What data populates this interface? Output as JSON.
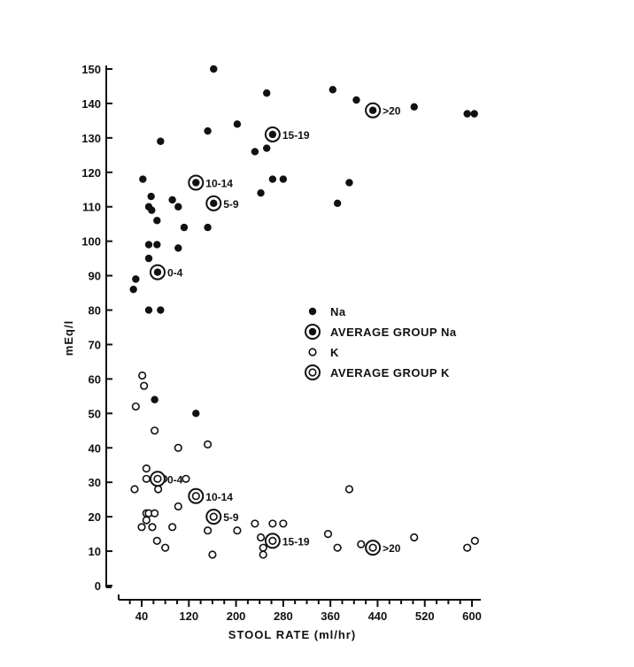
{
  "chart_data": {
    "type": "scatter",
    "xlabel": "STOOL RATE (ml/hr)",
    "ylabel": "mEq/l",
    "xlim": [
      20,
      600
    ],
    "ylim": [
      0,
      150
    ],
    "xticks": [
      40,
      120,
      200,
      280,
      360,
      440,
      520,
      600
    ],
    "yticks": [
      0,
      10,
      20,
      30,
      40,
      50,
      60,
      70,
      80,
      90,
      100,
      110,
      120,
      130,
      140,
      150
    ],
    "legend": {
      "position": "right-middle",
      "entries": [
        {
          "marker": "filled-dot",
          "label": "Na"
        },
        {
          "marker": "dot-in-circle",
          "label": "AVERAGE GROUP Na"
        },
        {
          "marker": "open-circle",
          "label": "K"
        },
        {
          "marker": "double-circle",
          "label": "AVERAGE GROUP K"
        }
      ]
    },
    "series": [
      {
        "name": "Na",
        "marker": "filled-dot",
        "points": [
          [
            162,
            150
          ],
          [
            252,
            143
          ],
          [
            364,
            144
          ],
          [
            404,
            141
          ],
          [
            502,
            139
          ],
          [
            592,
            137
          ],
          [
            604,
            137
          ],
          [
            72,
            129
          ],
          [
            152,
            132
          ],
          [
            202,
            134
          ],
          [
            252,
            127
          ],
          [
            232,
            126
          ],
          [
            42,
            118
          ],
          [
            52,
            110
          ],
          [
            56,
            113
          ],
          [
            57,
            109
          ],
          [
            66,
            106
          ],
          [
            92,
            112
          ],
          [
            102,
            110
          ],
          [
            112,
            104
          ],
          [
            152,
            104
          ],
          [
            52,
            99
          ],
          [
            66,
            99
          ],
          [
            102,
            98
          ],
          [
            52,
            95
          ],
          [
            30,
            89
          ],
          [
            26,
            86
          ],
          [
            52,
            80
          ],
          [
            72,
            80
          ],
          [
            242,
            114
          ],
          [
            262,
            118
          ],
          [
            280,
            118
          ],
          [
            392,
            117
          ],
          [
            372,
            111
          ],
          [
            62,
            54
          ],
          [
            132,
            50
          ]
        ]
      },
      {
        "name": "AVERAGE GROUP Na",
        "marker": "dot-in-circle",
        "points": [
          [
            67,
            91
          ],
          [
            132,
            117
          ],
          [
            162,
            111
          ],
          [
            262,
            131
          ],
          [
            432,
            138
          ]
        ]
      },
      {
        "name": "K",
        "marker": "open-circle",
        "points": [
          [
            41,
            61
          ],
          [
            44,
            58
          ],
          [
            30,
            52
          ],
          [
            62,
            45
          ],
          [
            152,
            41
          ],
          [
            102,
            40
          ],
          [
            48,
            34
          ],
          [
            48,
            31
          ],
          [
            77,
            31
          ],
          [
            115,
            31
          ],
          [
            68,
            28
          ],
          [
            28,
            28
          ],
          [
            392,
            28
          ],
          [
            102,
            23
          ],
          [
            48,
            21
          ],
          [
            52,
            21
          ],
          [
            62,
            21
          ],
          [
            48,
            19
          ],
          [
            40,
            17
          ],
          [
            58,
            17
          ],
          [
            92,
            17
          ],
          [
            152,
            16
          ],
          [
            202,
            16
          ],
          [
            232,
            18
          ],
          [
            262,
            18
          ],
          [
            280,
            18
          ],
          [
            66,
            13
          ],
          [
            242,
            14
          ],
          [
            356,
            15
          ],
          [
            80,
            11
          ],
          [
            160,
            9
          ],
          [
            246,
            11
          ],
          [
            246,
            9
          ],
          [
            372,
            11
          ],
          [
            412,
            12
          ],
          [
            502,
            14
          ],
          [
            592,
            11
          ],
          [
            605,
            13
          ]
        ]
      },
      {
        "name": "AVERAGE GROUP K",
        "marker": "double-circle",
        "points": [
          [
            67,
            31
          ],
          [
            132,
            26
          ],
          [
            162,
            20
          ],
          [
            262,
            13
          ],
          [
            432,
            11
          ]
        ]
      }
    ],
    "annotations": [
      {
        "text": "0-4",
        "x": 67,
        "y": 91
      },
      {
        "text": "10-14",
        "x": 132,
        "y": 117
      },
      {
        "text": "5-9",
        "x": 162,
        "y": 111
      },
      {
        "text": "15-19",
        "x": 262,
        "y": 131
      },
      {
        "text": ">20",
        "x": 432,
        "y": 138
      },
      {
        "text": "0-4",
        "x": 67,
        "y": 31
      },
      {
        "text": "10-14",
        "x": 132,
        "y": 26
      },
      {
        "text": "5-9",
        "x": 162,
        "y": 20
      },
      {
        "text": "15-19",
        "x": 262,
        "y": 13
      },
      {
        "text": ">20",
        "x": 432,
        "y": 11
      }
    ]
  }
}
